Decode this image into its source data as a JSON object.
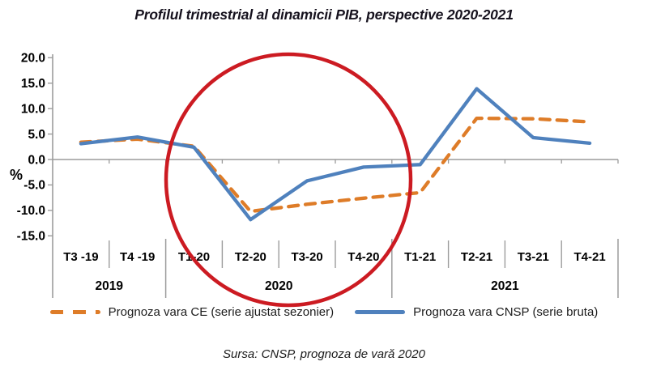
{
  "title": "Profilul trimestrial al dinamicii PIB, perspective 2020-2021",
  "source_note": "Sursa: CNSP, prognoza de vară 2020",
  "axis": {
    "percent_label": "%"
  },
  "legend": {
    "items": [
      {
        "id": "ce",
        "label": "Prognoza vara CE (serie ajustat sezonier)",
        "color": "#de7c28",
        "style": "dashed"
      },
      {
        "id": "cnsp",
        "label": "Prognoza vara CNSP (serie bruta)",
        "color": "#4f81bd",
        "style": "solid"
      }
    ]
  },
  "colors": {
    "ce_orange": "#de7c28",
    "cnsp_blue": "#4f81bd",
    "annotation_red": "#cc1b22",
    "axis_gray": "#9c9c9c",
    "text_dark": "#1a1a1a"
  },
  "chart_data": {
    "type": "line",
    "title": "Profilul trimestrial al dinamicii PIB, perspective 2020-2021",
    "categories": [
      "T3 -19",
      "T4 -19",
      "T1-20",
      "T2-20",
      "T3-20",
      "T4-20",
      "T1-21",
      "T2-21",
      "T3-21",
      "T4-21"
    ],
    "year_groups": [
      {
        "label": "2019",
        "span": 2
      },
      {
        "label": "2020",
        "span": 4
      },
      {
        "label": "2021",
        "span": 4
      }
    ],
    "series": [
      {
        "id": "ce",
        "name": "Prognoza vara CE (serie ajustat sezonier)",
        "color": "#de7c28",
        "dash": true,
        "values": [
          3.4,
          4.0,
          2.6,
          -10.2,
          -8.8,
          -7.6,
          -6.5,
          8.1,
          8.0,
          7.4
        ]
      },
      {
        "id": "cnsp",
        "name": "Prognoza vara CNSP (serie bruta)",
        "color": "#4f81bd",
        "dash": false,
        "values": [
          3.1,
          4.4,
          2.4,
          -11.8,
          -4.2,
          -1.5,
          -1.0,
          13.9,
          4.3,
          3.2
        ]
      }
    ],
    "ylabel": "%",
    "ytick_labels": [
      "20.0",
      "15.0",
      "10.0",
      "5.0",
      "0.0",
      "-5.0",
      "-10.0",
      "-15.0"
    ],
    "ytick_values": [
      20,
      15,
      10,
      5,
      0,
      -5,
      -10,
      -15
    ],
    "ylim": [
      -15,
      20
    ],
    "grid": false,
    "legend_position": "bottom",
    "annotation": {
      "type": "ellipse",
      "color": "#cc1b22"
    }
  }
}
